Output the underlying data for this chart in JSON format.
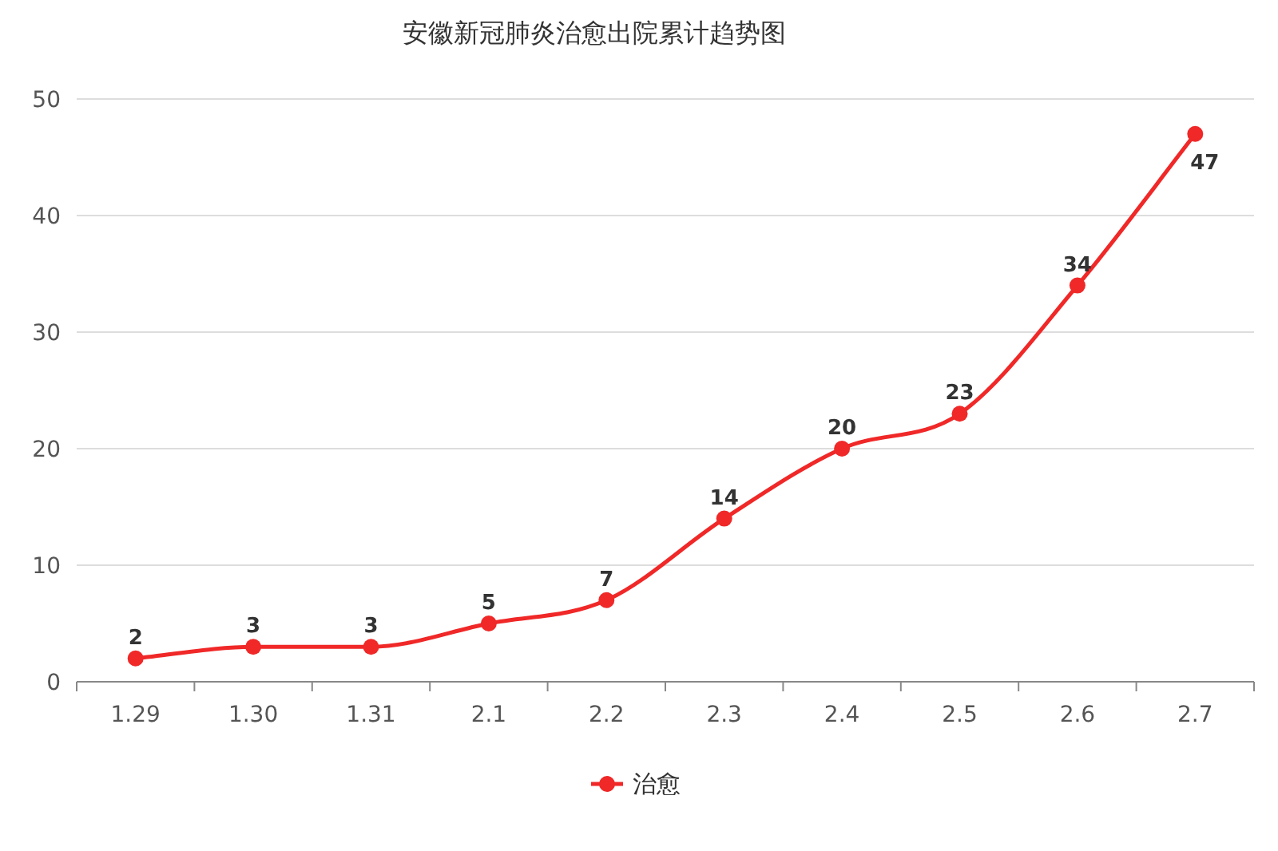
{
  "chart_data": {
    "type": "line",
    "title": "安徽新冠肺炎治愈出院累计趋势图",
    "categories": [
      "1.29",
      "1.30",
      "1.31",
      "2.1",
      "2.2",
      "2.3",
      "2.4",
      "2.5",
      "2.6",
      "2.7"
    ],
    "series": [
      {
        "name": "治愈",
        "color": "#f02828",
        "values": [
          2,
          3,
          3,
          5,
          7,
          14,
          20,
          23,
          34,
          47
        ]
      }
    ],
    "ylim": [
      0,
      50
    ],
    "yticks": [
      0,
      10,
      20,
      30,
      40,
      50
    ],
    "grid": "y",
    "legend": "bottom",
    "marker": "circle",
    "data_labels": true
  }
}
